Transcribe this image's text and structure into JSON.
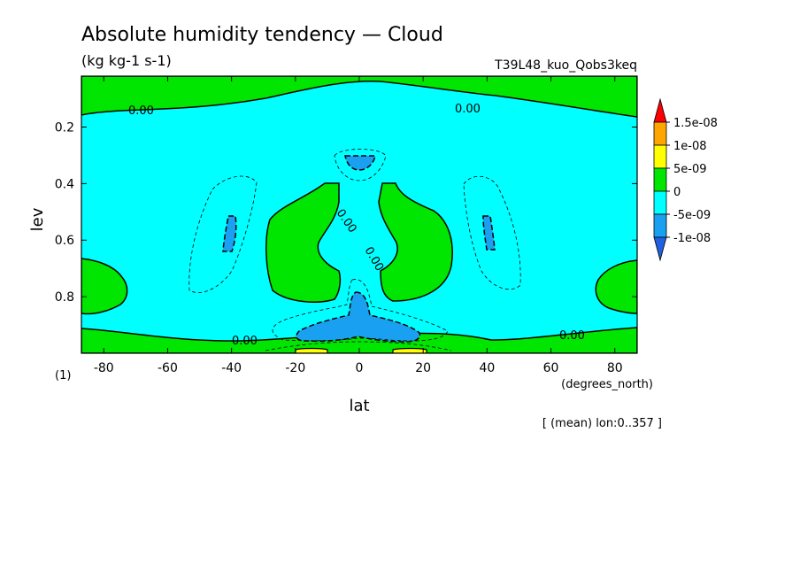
{
  "chart_data": {
    "type": "contour",
    "title": "Absolute humidity tendency — Cloud",
    "units": "(kg kg-1 s-1)",
    "experiment": "T39L48_kuo_Qobs3keq",
    "xlabel": "lat",
    "x_units": "(degrees_north)",
    "ylabel": "lev",
    "y_units": "(1)",
    "xlim": [
      -87,
      87
    ],
    "ylim": [
      1.0,
      0.02
    ],
    "x_ticks": [
      "-80",
      "-60",
      "-40",
      "-20",
      "0",
      "20",
      "40",
      "60",
      "80"
    ],
    "y_ticks": [
      "0.2",
      "0.4",
      "0.6",
      "0.8"
    ],
    "contour_labels": [
      "0.00",
      "0.00",
      "0.00",
      "0.00",
      "0.00",
      "0.00"
    ],
    "colorbar": {
      "labels": [
        "1.5e-08",
        "1e-08",
        "5e-09",
        "0",
        "-5e-09",
        "-1e-08"
      ],
      "colors": [
        "#ff0000",
        "#ffa500",
        "#ffff00",
        "#00e600",
        "#00ffff",
        "#1aa0f0",
        "#2060e0"
      ]
    },
    "footnote": "[ (mean) lon:0..357 ]"
  }
}
